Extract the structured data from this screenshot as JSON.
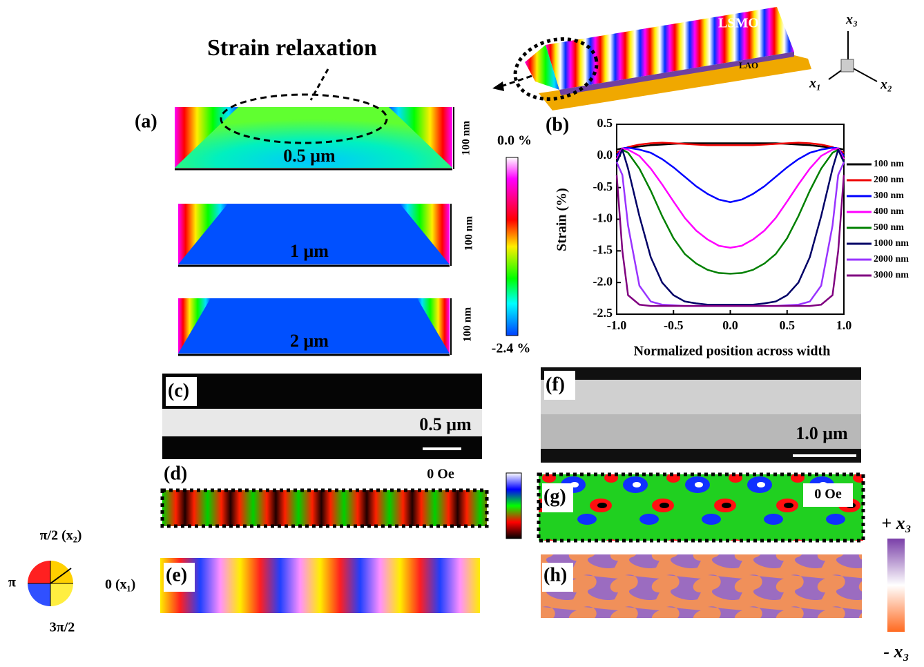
{
  "header": {
    "annotation": "Strain relaxation"
  },
  "schematic": {
    "film": "LSMO",
    "substrate": "LAO",
    "axis_up": "x₃",
    "axis_left": "x₁",
    "axis_right": "x₂"
  },
  "panel_a": {
    "label": "(a)",
    "maps": [
      {
        "width": "0.5 μm",
        "thickness": "100 nm"
      },
      {
        "width": "1 μm",
        "thickness": "100 nm"
      },
      {
        "width": "2 μm",
        "thickness": "100 nm"
      }
    ],
    "colorbar": {
      "max": "0.0 %",
      "min": "-2.4 %"
    }
  },
  "chart_data": {
    "type": "line",
    "panel_label": "(b)",
    "xlabel": "Normalized position across width",
    "ylabel": "Strain (%)",
    "x": [
      -1.0,
      -0.95,
      -0.9,
      -0.8,
      -0.7,
      -0.6,
      -0.5,
      -0.4,
      -0.3,
      -0.2,
      -0.1,
      0.0,
      0.1,
      0.2,
      0.3,
      0.4,
      0.5,
      0.6,
      0.7,
      0.8,
      0.9,
      0.95,
      1.0
    ],
    "xlim": [
      -1.0,
      1.0
    ],
    "xticks": [
      {
        "value": -1.0,
        "label": "-1.0"
      },
      {
        "value": -0.5,
        "label": "-0.5"
      },
      {
        "value": 0.0,
        "label": "0.0"
      },
      {
        "value": 0.5,
        "label": "0.5"
      },
      {
        "value": 1.0,
        "label": "1.0"
      }
    ],
    "ylim": [
      -2.5,
      0.5
    ],
    "yticks": [
      {
        "value": 0.5,
        "label": "0.5"
      },
      {
        "value": 0.0,
        "label": "0.0"
      },
      {
        "value": -0.5,
        "label": "-0.5"
      },
      {
        "value": -1.0,
        "label": "-1.0"
      },
      {
        "value": -1.5,
        "label": "-1.5"
      },
      {
        "value": -2.0,
        "label": "-2.0"
      },
      {
        "value": -2.5,
        "label": "-2.5"
      }
    ],
    "series": [
      {
        "name": "100 nm",
        "color": "#000000",
        "values": [
          0.1,
          0.12,
          0.13,
          0.15,
          0.17,
          0.18,
          0.19,
          0.2,
          0.2,
          0.2,
          0.2,
          0.2,
          0.2,
          0.2,
          0.2,
          0.2,
          0.19,
          0.18,
          0.17,
          0.15,
          0.13,
          0.12,
          0.1
        ]
      },
      {
        "name": "200 nm",
        "color": "#ee0000",
        "values": [
          0.05,
          0.1,
          0.14,
          0.18,
          0.2,
          0.21,
          0.2,
          0.19,
          0.18,
          0.17,
          0.17,
          0.17,
          0.17,
          0.17,
          0.18,
          0.19,
          0.2,
          0.21,
          0.2,
          0.18,
          0.14,
          0.1,
          0.05
        ]
      },
      {
        "name": "300 nm",
        "color": "#0000ff",
        "values": [
          0.0,
          0.12,
          0.13,
          0.1,
          0.05,
          -0.05,
          -0.18,
          -0.33,
          -0.48,
          -0.6,
          -0.69,
          -0.73,
          -0.69,
          -0.6,
          -0.48,
          -0.33,
          -0.18,
          -0.05,
          0.05,
          0.1,
          0.13,
          0.12,
          0.0
        ]
      },
      {
        "name": "400 nm",
        "color": "#ff00ff",
        "values": [
          -0.05,
          0.12,
          0.1,
          0.0,
          -0.2,
          -0.45,
          -0.72,
          -0.98,
          -1.18,
          -1.32,
          -1.42,
          -1.45,
          -1.42,
          -1.32,
          -1.18,
          -0.98,
          -0.72,
          -0.45,
          -0.2,
          0.0,
          0.1,
          0.12,
          -0.05
        ]
      },
      {
        "name": "500 nm",
        "color": "#008000",
        "values": [
          -0.1,
          0.1,
          0.05,
          -0.2,
          -0.55,
          -0.95,
          -1.3,
          -1.55,
          -1.7,
          -1.8,
          -1.85,
          -1.86,
          -1.85,
          -1.8,
          -1.7,
          -1.55,
          -1.3,
          -0.95,
          -0.55,
          -0.2,
          0.05,
          0.1,
          -0.1
        ]
      },
      {
        "name": "1000 nm",
        "color": "#000066",
        "values": [
          -0.1,
          0.1,
          -0.2,
          -0.95,
          -1.6,
          -2.0,
          -2.2,
          -2.3,
          -2.33,
          -2.35,
          -2.35,
          -2.35,
          -2.35,
          -2.35,
          -2.33,
          -2.3,
          -2.2,
          -2.0,
          -1.6,
          -0.95,
          -0.2,
          0.1,
          -0.1
        ]
      },
      {
        "name": "2000 nm",
        "color": "#9933ff",
        "values": [
          -0.1,
          -0.3,
          -1.1,
          -2.05,
          -2.3,
          -2.35,
          -2.36,
          -2.37,
          -2.37,
          -2.37,
          -2.37,
          -2.37,
          -2.37,
          -2.37,
          -2.37,
          -2.37,
          -2.36,
          -2.35,
          -2.3,
          -2.05,
          -1.1,
          -0.3,
          -0.1
        ]
      },
      {
        "name": "3000 nm",
        "color": "#800080",
        "values": [
          -0.3,
          -1.5,
          -2.2,
          -2.35,
          -2.37,
          -2.37,
          -2.37,
          -2.37,
          -2.37,
          -2.37,
          -2.37,
          -2.37,
          -2.37,
          -2.37,
          -2.37,
          -2.37,
          -2.37,
          -2.37,
          -2.37,
          -2.35,
          -2.2,
          -1.5,
          -0.3
        ]
      }
    ]
  },
  "panel_c": {
    "label": "(c)",
    "scale": "0.5 μm"
  },
  "panel_d": {
    "label": "(d)",
    "field": "0 Oe"
  },
  "panel_e": {
    "label": "(e)"
  },
  "panel_f": {
    "label": "(f)",
    "scale": "1.0 μm"
  },
  "panel_g": {
    "label": "(g)",
    "field": "0 Oe"
  },
  "panel_h": {
    "label": "(h)"
  },
  "wheel": {
    "top": "π/2 (x₂)",
    "left": "π",
    "right": "0 (x₁)",
    "bottom": "3π/2"
  },
  "polarity": {
    "plus": "+ x₃",
    "minus": "- x₃"
  }
}
